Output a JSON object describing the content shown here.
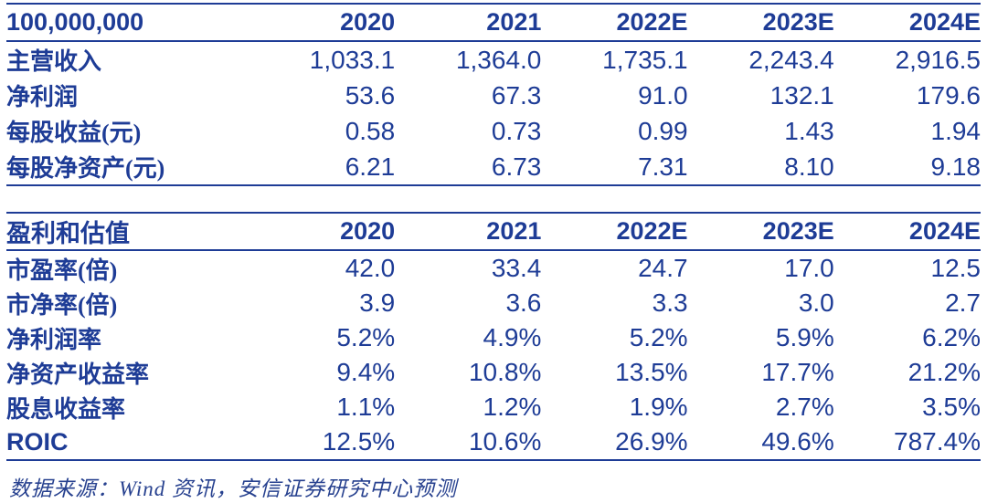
{
  "theme": {
    "text_color": "#1E3C96",
    "rule_color": "#1E3C96",
    "background": "#FFFFFF"
  },
  "unit_table": {
    "header": [
      "100,000,000",
      "2020",
      "2021",
      "2022E",
      "2023E",
      "2024E"
    ],
    "rows": [
      {
        "label": "主营收入",
        "values": [
          "1,033.1",
          "1,364.0",
          "1,735.1",
          "2,243.4",
          "2,916.5"
        ]
      },
      {
        "label": "净利润",
        "values": [
          "53.6",
          "67.3",
          "91.0",
          "132.1",
          "179.6"
        ]
      },
      {
        "label": "每股收益(元)",
        "values": [
          "0.58",
          "0.73",
          "0.99",
          "1.43",
          "1.94"
        ]
      },
      {
        "label": "每股净资产(元)",
        "values": [
          "6.21",
          "6.73",
          "7.31",
          "8.10",
          "9.18"
        ]
      }
    ]
  },
  "valuation_table": {
    "header": [
      "盈利和估值",
      "2020",
      "2021",
      "2022E",
      "2023E",
      "2024E"
    ],
    "rows": [
      {
        "label": "市盈率(倍)",
        "values": [
          "42.0",
          "33.4",
          "24.7",
          "17.0",
          "12.5"
        ]
      },
      {
        "label": "市净率(倍)",
        "values": [
          "3.9",
          "3.6",
          "3.3",
          "3.0",
          "2.7"
        ]
      },
      {
        "label": "净利润率",
        "values": [
          "5.2%",
          "4.9%",
          "5.2%",
          "5.9%",
          "6.2%"
        ]
      },
      {
        "label": "净资产收益率",
        "values": [
          "9.4%",
          "10.8%",
          "13.5%",
          "17.7%",
          "21.2%"
        ]
      },
      {
        "label": "股息收益率",
        "values": [
          "1.1%",
          "1.2%",
          "1.9%",
          "2.7%",
          "3.5%"
        ]
      },
      {
        "label": "ROIC",
        "values": [
          "12.5%",
          "10.6%",
          "26.9%",
          "49.6%",
          "787.4%"
        ]
      }
    ]
  },
  "footer": {
    "source_note": "数据来源：Wind 资讯，安信证券研究中心预测"
  }
}
